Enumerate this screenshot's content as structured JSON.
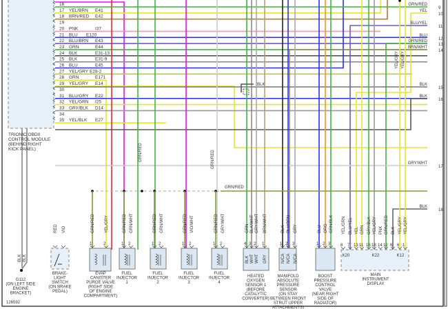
{
  "figure_id": "126592",
  "module": {
    "title_lines": [
      "TRIONIC OBDII",
      "CONTROL MODULE",
      "(BEHIND RIGHT",
      "KICK PANEL)"
    ],
    "pins": [
      {
        "num": "16",
        "color": "",
        "code": ""
      },
      {
        "num": "17",
        "color": "YEL/BRN",
        "code": "E41"
      },
      {
        "num": "18",
        "color": "BRN/RED",
        "code": "E42"
      },
      {
        "num": "19",
        "color": "",
        "code": ""
      },
      {
        "num": "20",
        "color": "PNK",
        "code": "I37"
      },
      {
        "num": "21",
        "color": "BLU",
        "code": "E120"
      },
      {
        "num": "22",
        "color": "BLU/BRN",
        "code": "E43"
      },
      {
        "num": "23",
        "color": "GRN",
        "code": "E44"
      },
      {
        "num": "24",
        "color": "BLK",
        "code": "E31-13"
      },
      {
        "num": "25",
        "color": "BLK",
        "code": "E31-9"
      },
      {
        "num": "26",
        "color": "BLU",
        "code": "E45"
      },
      {
        "num": "27",
        "color": "YEL/GRY",
        "code": "E28-2"
      },
      {
        "num": "28",
        "color": "GRN",
        "code": "E171"
      },
      {
        "num": "29",
        "color": "YEL/GRY",
        "code": "E14"
      },
      {
        "num": "30",
        "color": "",
        "code": ""
      },
      {
        "num": "31",
        "color": "BLU/GRY",
        "code": "E22"
      },
      {
        "num": "32",
        "color": "YEL/GRN",
        "code": "I25"
      },
      {
        "num": "33",
        "color": "GRY/BLK",
        "code": "D14"
      },
      {
        "num": "34",
        "color": "",
        "code": ""
      },
      {
        "num": "35",
        "color": "YEL/BLK",
        "code": "E27"
      }
    ]
  },
  "terminals": [
    {
      "num": "9",
      "label": "GRN/RED"
    },
    {
      "num": "10",
      "label": "YEL"
    },
    {
      "num": "11",
      "label": "BLU/YEL"
    },
    {
      "num": "12",
      "label": "BLU"
    },
    {
      "num": "13",
      "label": "GRN/RED"
    },
    {
      "num": "14",
      "label": "BRN/WHT"
    },
    {
      "num": "15",
      "label": "BLK"
    },
    {
      "num": "16",
      "label": "BLK"
    },
    {
      "num": "17",
      "label": "GRY/WHT"
    },
    {
      "num": "18",
      "label": "BLK"
    }
  ],
  "wire_labels": {
    "blk_splice": "BLK",
    "grn_red_1": "GRN/RED",
    "grn_red_2": "GRN/RED",
    "grn_red_bus": "GRN/RED",
    "yel_gry_1": "YEL/GRY",
    "yel_gry_2": "YEL/GRY"
  },
  "components": {
    "ground": {
      "wires": [
        "BLK",
        "BLK"
      ],
      "lines": [
        "G112",
        "(ON LEFT SIDE",
        "ENGINE",
        "BRACKET)"
      ]
    },
    "brake": {
      "wires": [
        "RED",
        "VIO"
      ],
      "pins": [
        "",
        ""
      ],
      "lines": [
        "BRAKE-",
        "LIGHT",
        "SWITCH",
        "(ON BRAKE",
        "PEDAL)"
      ]
    },
    "evap": {
      "wires": [
        "GRN/RED",
        "YEL/GRY"
      ],
      "pins": [
        "1",
        "2"
      ],
      "lines": [
        "EVAP",
        "CANISTER",
        "PURGE VALVE",
        "(RIGHT SIDE",
        "OF ENGINE",
        "COMPARTMENT)"
      ]
    },
    "inj1": {
      "wires": [
        "GRN/RED",
        "GRN/WHT"
      ],
      "pins": [
        "1",
        "2"
      ],
      "lines": [
        "FUEL",
        "INJECTOR",
        "1"
      ]
    },
    "inj2": {
      "wires": [
        "GRN/RED",
        "GRN/WHT"
      ],
      "pins": [
        "1",
        "2"
      ],
      "lines": [
        "FUEL",
        "INJECTOR",
        "2"
      ]
    },
    "inj3": {
      "wires": [
        "GRN/RED",
        "VIO/WHT"
      ],
      "pins": [
        "1",
        "2"
      ],
      "lines": [
        "FUEL",
        "INJECTOR",
        "3"
      ]
    },
    "inj4": {
      "wires": [
        "GRN/RED",
        "GRY/WHT"
      ],
      "pins": [
        "1",
        "2"
      ],
      "lines": [
        "FUEL",
        "INJECTOR",
        "4"
      ]
    },
    "o2": {
      "wires": [
        "GRN",
        "BLK/WHT",
        "GRY/WHT",
        "BRN/WHT"
      ],
      "pins": [
        "4",
        "3",
        "2",
        "1"
      ],
      "pigtail": [
        "BLK",
        "WHT",
        "WHT",
        "GRY"
      ],
      "lines": [
        "HEATED",
        "OXYGEN",
        "SENSOR 1",
        "(BEFORE",
        "CATALYTIC",
        "CONVERTER)"
      ]
    },
    "map": {
      "wires": [
        "BLK",
        "BLU/BRN",
        "GRY"
      ],
      "pins": [
        "1",
        "2",
        "3"
      ],
      "pigtail": [
        "N/CA",
        "N/CA",
        "N/CA"
      ],
      "lines": [
        "MANIFOLD",
        "ABSOLUTE",
        "PRESSURE",
        "SENSOR",
        "(ON STAY",
        "BETWEEN FRONT",
        "STRUT UPPER",
        "ATTACHMENTS)"
      ]
    },
    "boost": {
      "wires": [
        "BLU",
        "ORG",
        "GRN/BLK"
      ],
      "pins": [
        "1",
        "2",
        "3"
      ],
      "lines": [
        "BOOST",
        "PRESSURE",
        "CONTROL",
        "VALVE",
        "(NEAR RIGHT",
        "SIDE OF",
        "RADIATOR)"
      ]
    },
    "ipc": {
      "wires": [
        "YEL/GRN",
        "BLU/YEL",
        "YEL",
        "GRN",
        "GRY/BLK",
        "YEL/GRY",
        "PNK",
        "GRN/RED",
        "BLK",
        "YEL/GRY",
        "YEL/GRY"
      ],
      "pins": [
        "8",
        "7",
        "13",
        "11",
        "16",
        "18",
        "14",
        "12",
        "6",
        "6",
        "1"
      ],
      "connectors": [
        "K20",
        "K22",
        "K12"
      ],
      "lines": [
        "MAIN",
        "INSTRUMENT",
        "DISPLAY"
      ]
    }
  }
}
